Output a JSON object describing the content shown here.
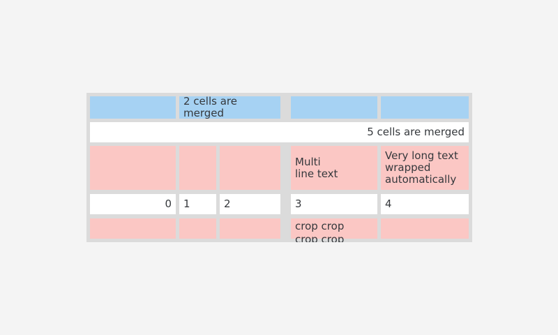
{
  "screen": {
    "background": "#f4f4f4"
  },
  "table": {
    "description": "table-widget-with-merged-cells",
    "border_color": "#dbdbdb",
    "text_color": "#35383c",
    "cell_colors": {
      "blue": "#a6d2f3",
      "white": "#ffffff",
      "pink": "#fbc7c4"
    },
    "rows": 5,
    "cols": 5,
    "cells": [
      {
        "r": 1,
        "c": 1,
        "colspan": 1,
        "bg": "blue",
        "text": ""
      },
      {
        "r": 1,
        "c": 2,
        "colspan": 2,
        "bg": "blue",
        "text": "2 cells are merged"
      },
      {
        "r": 1,
        "c": 4,
        "colspan": 1,
        "bg": "blue",
        "text": ""
      },
      {
        "r": 1,
        "c": 5,
        "colspan": 1,
        "bg": "blue",
        "text": ""
      },
      {
        "r": 2,
        "c": 1,
        "colspan": 5,
        "bg": "white",
        "text": "5 cells are merged",
        "align": "right"
      },
      {
        "r": 3,
        "c": 1,
        "colspan": 1,
        "bg": "pink",
        "text": ""
      },
      {
        "r": 3,
        "c": 2,
        "colspan": 1,
        "bg": "pink",
        "text": ""
      },
      {
        "r": 3,
        "c": 3,
        "colspan": 1,
        "bg": "pink",
        "text": ""
      },
      {
        "r": 3,
        "c": 4,
        "colspan": 1,
        "bg": "pink",
        "text": "Multi\nline text"
      },
      {
        "r": 3,
        "c": 5,
        "colspan": 1,
        "bg": "pink",
        "text": "Very long text wrapped automatically"
      },
      {
        "r": 4,
        "c": 1,
        "colspan": 1,
        "bg": "white",
        "text": "0",
        "align": "right"
      },
      {
        "r": 4,
        "c": 2,
        "colspan": 1,
        "bg": "white",
        "text": "1"
      },
      {
        "r": 4,
        "c": 3,
        "colspan": 1,
        "bg": "white",
        "text": "2"
      },
      {
        "r": 4,
        "c": 4,
        "colspan": 1,
        "bg": "white",
        "text": "3"
      },
      {
        "r": 4,
        "c": 5,
        "colspan": 1,
        "bg": "white",
        "text": "4"
      },
      {
        "r": 5,
        "c": 1,
        "colspan": 1,
        "bg": "pink",
        "text": ""
      },
      {
        "r": 5,
        "c": 2,
        "colspan": 1,
        "bg": "pink",
        "text": ""
      },
      {
        "r": 5,
        "c": 3,
        "colspan": 1,
        "bg": "pink",
        "text": ""
      },
      {
        "r": 5,
        "c": 4,
        "colspan": 1,
        "bg": "pink",
        "text": "crop crop\ncrop crop",
        "crop": true
      },
      {
        "r": 5,
        "c": 5,
        "colspan": 1,
        "bg": "pink",
        "text": ""
      }
    ]
  }
}
